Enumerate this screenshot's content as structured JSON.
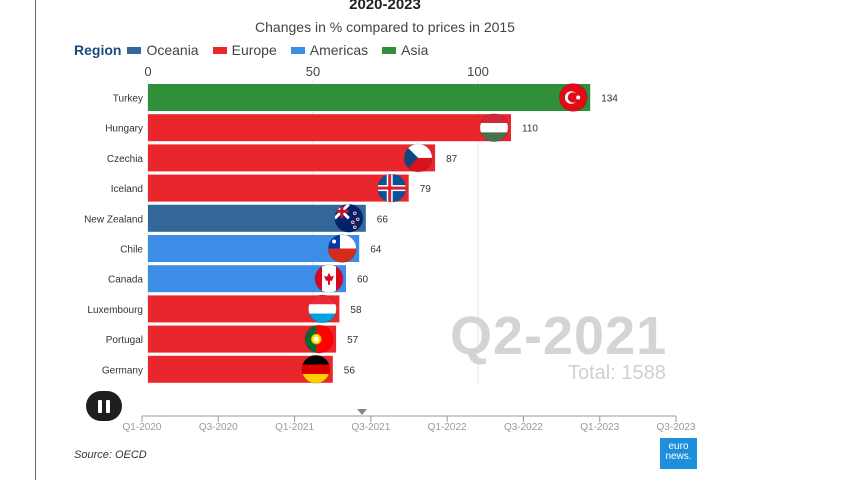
{
  "title": "2020-2023",
  "subtitle": "Changes in % compared to prices in 2015",
  "legend": {
    "label": "Region",
    "items": [
      {
        "name": "Oceania",
        "color": "#336699"
      },
      {
        "name": "Europe",
        "color": "#e8262b"
      },
      {
        "name": "Americas",
        "color": "#3b8de6"
      },
      {
        "name": "Asia",
        "color": "#2f8f3a"
      }
    ]
  },
  "chart_data": {
    "type": "bar",
    "orientation": "horizontal",
    "xlim": [
      0,
      134
    ],
    "xticks": [
      0,
      50,
      100
    ],
    "categories": [
      "Turkey",
      "Hungary",
      "Czechia",
      "Iceland",
      "New Zealand",
      "Chile",
      "Canada",
      "Luxembourg",
      "Portugal",
      "Germany"
    ],
    "values": [
      134,
      110,
      87,
      79,
      66,
      64,
      60,
      58,
      57,
      56
    ],
    "regions": [
      "Asia",
      "Europe",
      "Europe",
      "Europe",
      "Oceania",
      "Americas",
      "Americas",
      "Europe",
      "Europe",
      "Europe"
    ],
    "flags": [
      "turkey-flag",
      "hungary-flag",
      "czechia-flag",
      "iceland-flag",
      "new-zealand-flag",
      "chile-flag",
      "canada-flag",
      "luxembourg-flag",
      "portugal-flag",
      "germany-flag"
    ],
    "period": "Q2-2021",
    "total_label": "Total: 1588"
  },
  "timeline": {
    "ticks": [
      "Q1-2020",
      "Q3-2020",
      "Q1-2021",
      "Q3-2021",
      "Q1-2022",
      "Q3-2022",
      "Q1-2023",
      "Q3-2023"
    ],
    "current_fraction": 0.412
  },
  "player": {
    "state": "playing",
    "icon": "pause-icon"
  },
  "source": "Source: OECD",
  "logo": {
    "line1": "euro",
    "line2": "news."
  }
}
